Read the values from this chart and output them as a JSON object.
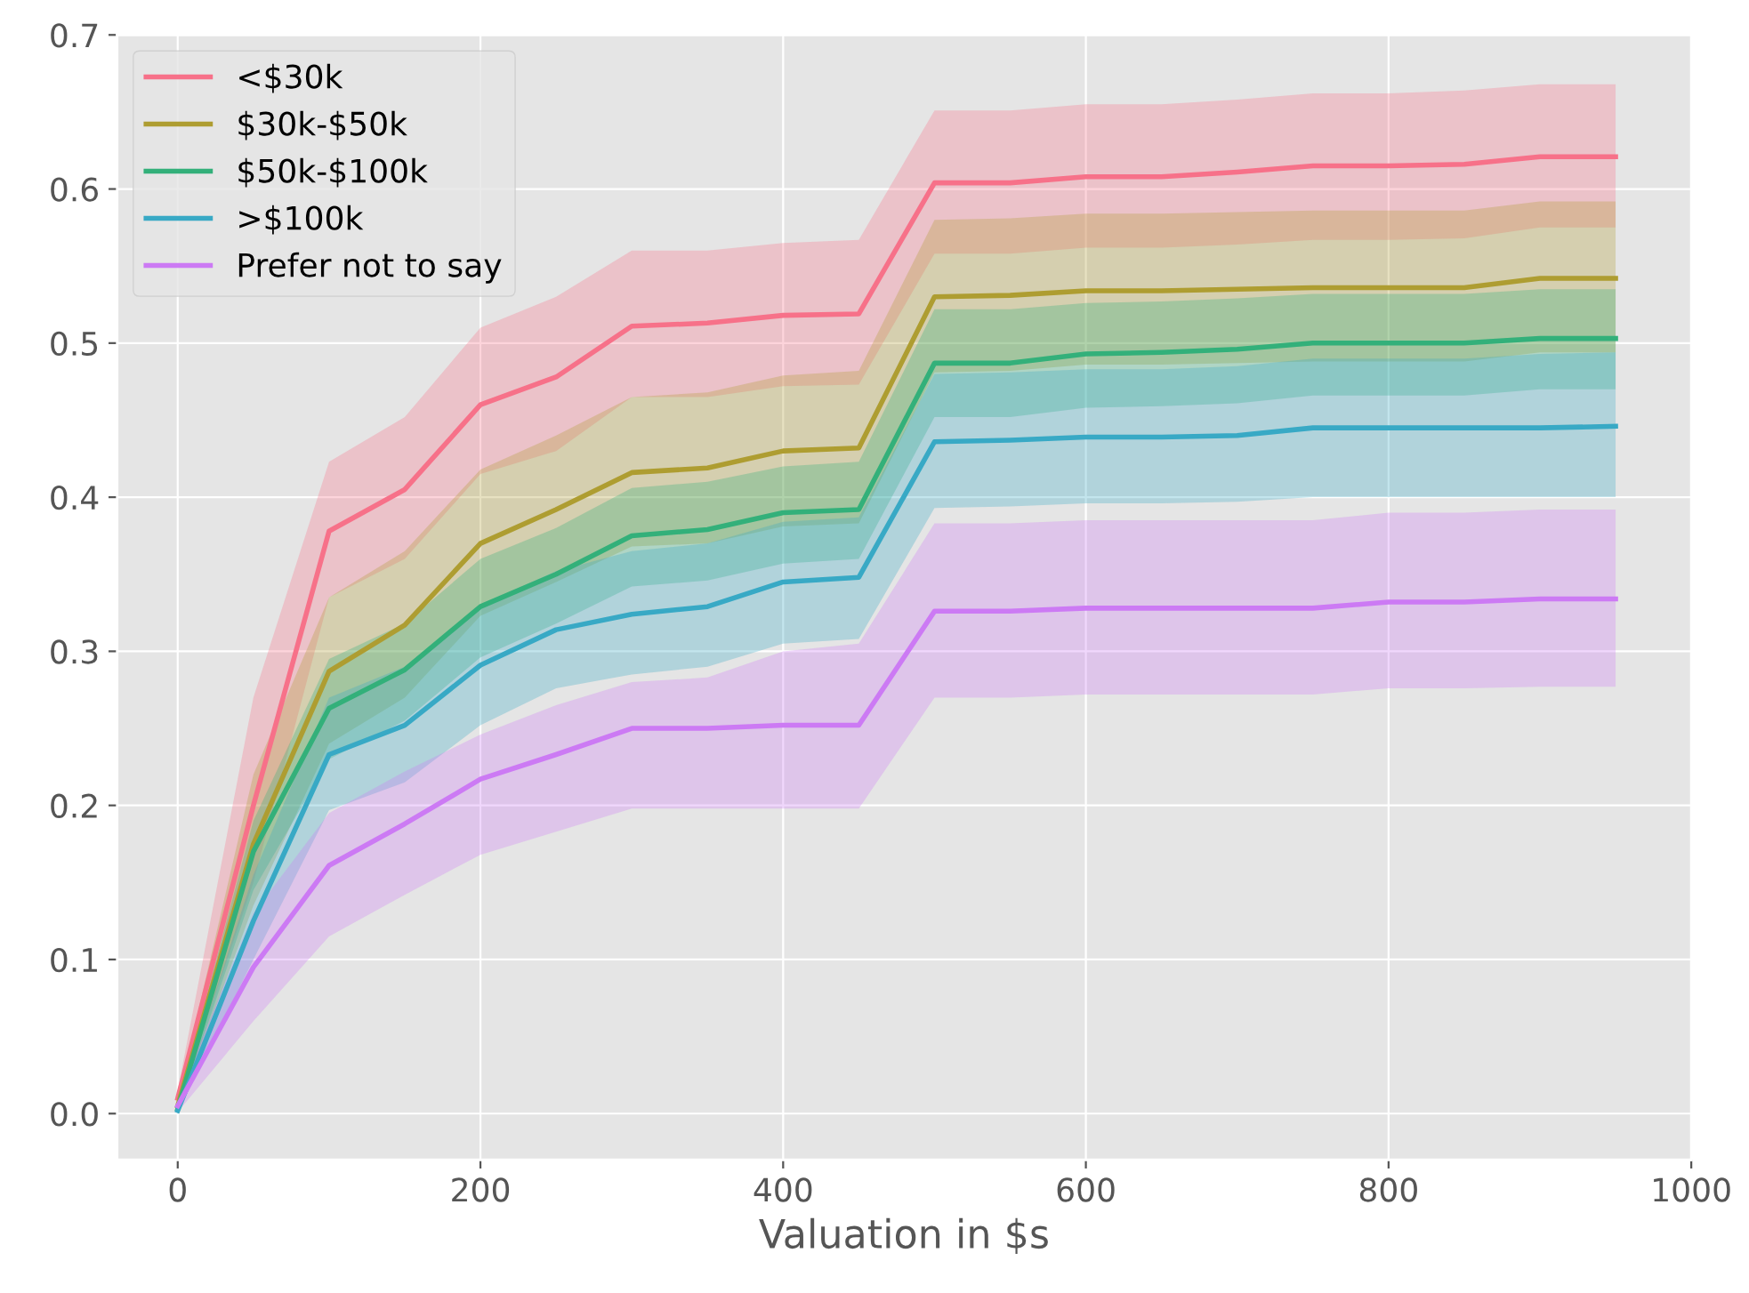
{
  "chart_data": {
    "type": "line",
    "xlabel": "Valuation in $s",
    "x": [
      0,
      50,
      100,
      150,
      200,
      250,
      300,
      350,
      400,
      450,
      500,
      550,
      600,
      650,
      700,
      750,
      800,
      850,
      900,
      950
    ],
    "xlim": [
      -40,
      1000
    ],
    "xticks": [
      0,
      200,
      400,
      600,
      800,
      1000
    ],
    "ylim": [
      -0.03,
      0.7
    ],
    "yticks": [
      {
        "value": 0,
        "label": "0.0"
      },
      0.1,
      0.2,
      0.3,
      0.4,
      0.5,
      0.6,
      0.7
    ],
    "grid": true,
    "legend": "top left",
    "marker": "none",
    "line_style": "solid",
    "series": [
      {
        "name": "<$30k",
        "color": "#f77189",
        "values": [
          0.01,
          0.2,
          0.378,
          0.405,
          0.46,
          0.478,
          0.511,
          0.513,
          0.518,
          0.519,
          0.604,
          0.604,
          0.608,
          0.608,
          0.611,
          0.615,
          0.615,
          0.616,
          0.621,
          0.621
        ],
        "upper": [
          0.015,
          0.27,
          0.423,
          0.452,
          0.51,
          0.53,
          0.56,
          0.56,
          0.565,
          0.567,
          0.651,
          0.651,
          0.655,
          0.655,
          0.658,
          0.662,
          0.662,
          0.664,
          0.668,
          0.668
        ],
        "lower": [
          0.005,
          0.15,
          0.335,
          0.36,
          0.415,
          0.43,
          0.465,
          0.465,
          0.472,
          0.473,
          0.558,
          0.558,
          0.562,
          0.562,
          0.564,
          0.567,
          0.567,
          0.568,
          0.575,
          0.575
        ]
      },
      {
        "name": "$30k-$50k",
        "color": "#ae9d31",
        "values": [
          0.005,
          0.175,
          0.287,
          0.317,
          0.37,
          0.392,
          0.416,
          0.419,
          0.43,
          0.432,
          0.53,
          0.531,
          0.534,
          0.534,
          0.535,
          0.536,
          0.536,
          0.536,
          0.542,
          0.542
        ],
        "upper": [
          0.01,
          0.22,
          0.335,
          0.365,
          0.418,
          0.44,
          0.465,
          0.468,
          0.479,
          0.482,
          0.58,
          0.581,
          0.584,
          0.584,
          0.585,
          0.586,
          0.586,
          0.586,
          0.592,
          0.592
        ],
        "lower": [
          0.002,
          0.135,
          0.24,
          0.27,
          0.323,
          0.345,
          0.368,
          0.37,
          0.381,
          0.383,
          0.481,
          0.482,
          0.486,
          0.486,
          0.487,
          0.488,
          0.488,
          0.488,
          0.494,
          0.494
        ]
      },
      {
        "name": "$50k-$100k",
        "color": "#33b07a",
        "values": [
          0.003,
          0.17,
          0.263,
          0.288,
          0.329,
          0.35,
          0.375,
          0.379,
          0.39,
          0.392,
          0.487,
          0.487,
          0.493,
          0.494,
          0.496,
          0.5,
          0.5,
          0.5,
          0.503,
          0.503
        ],
        "upper": [
          0.006,
          0.19,
          0.295,
          0.318,
          0.36,
          0.38,
          0.406,
          0.41,
          0.42,
          0.423,
          0.522,
          0.522,
          0.526,
          0.527,
          0.529,
          0.532,
          0.532,
          0.532,
          0.535,
          0.535
        ],
        "lower": [
          0.001,
          0.145,
          0.23,
          0.255,
          0.296,
          0.318,
          0.342,
          0.346,
          0.357,
          0.36,
          0.452,
          0.452,
          0.458,
          0.459,
          0.461,
          0.466,
          0.466,
          0.466,
          0.47,
          0.47
        ]
      },
      {
        "name": ">$100k",
        "color": "#38a9c5",
        "values": [
          0.002,
          0.125,
          0.233,
          0.252,
          0.291,
          0.314,
          0.324,
          0.329,
          0.345,
          0.348,
          0.436,
          0.437,
          0.439,
          0.439,
          0.44,
          0.445,
          0.445,
          0.445,
          0.445,
          0.446
        ],
        "upper": [
          0.004,
          0.155,
          0.27,
          0.29,
          0.33,
          0.352,
          0.365,
          0.37,
          0.384,
          0.387,
          0.48,
          0.481,
          0.483,
          0.483,
          0.485,
          0.49,
          0.49,
          0.49,
          0.493,
          0.494
        ],
        "lower": [
          0.001,
          0.1,
          0.197,
          0.215,
          0.252,
          0.276,
          0.285,
          0.29,
          0.305,
          0.308,
          0.393,
          0.394,
          0.396,
          0.396,
          0.397,
          0.4,
          0.4,
          0.4,
          0.4,
          0.4
        ]
      },
      {
        "name": "Prefer not to say",
        "color": "#cc7af4",
        "values": [
          0.005,
          0.095,
          0.161,
          0.188,
          0.217,
          0.233,
          0.25,
          0.25,
          0.252,
          0.252,
          0.326,
          0.326,
          0.328,
          0.328,
          0.328,
          0.328,
          0.332,
          0.332,
          0.334,
          0.334
        ],
        "upper": [
          0.01,
          0.13,
          0.195,
          0.222,
          0.246,
          0.265,
          0.28,
          0.283,
          0.3,
          0.305,
          0.383,
          0.383,
          0.385,
          0.385,
          0.385,
          0.385,
          0.39,
          0.39,
          0.392,
          0.392
        ],
        "lower": [
          0.001,
          0.06,
          0.115,
          0.142,
          0.168,
          0.183,
          0.198,
          0.198,
          0.198,
          0.198,
          0.27,
          0.27,
          0.272,
          0.272,
          0.272,
          0.272,
          0.276,
          0.276,
          0.277,
          0.277
        ]
      }
    ]
  }
}
